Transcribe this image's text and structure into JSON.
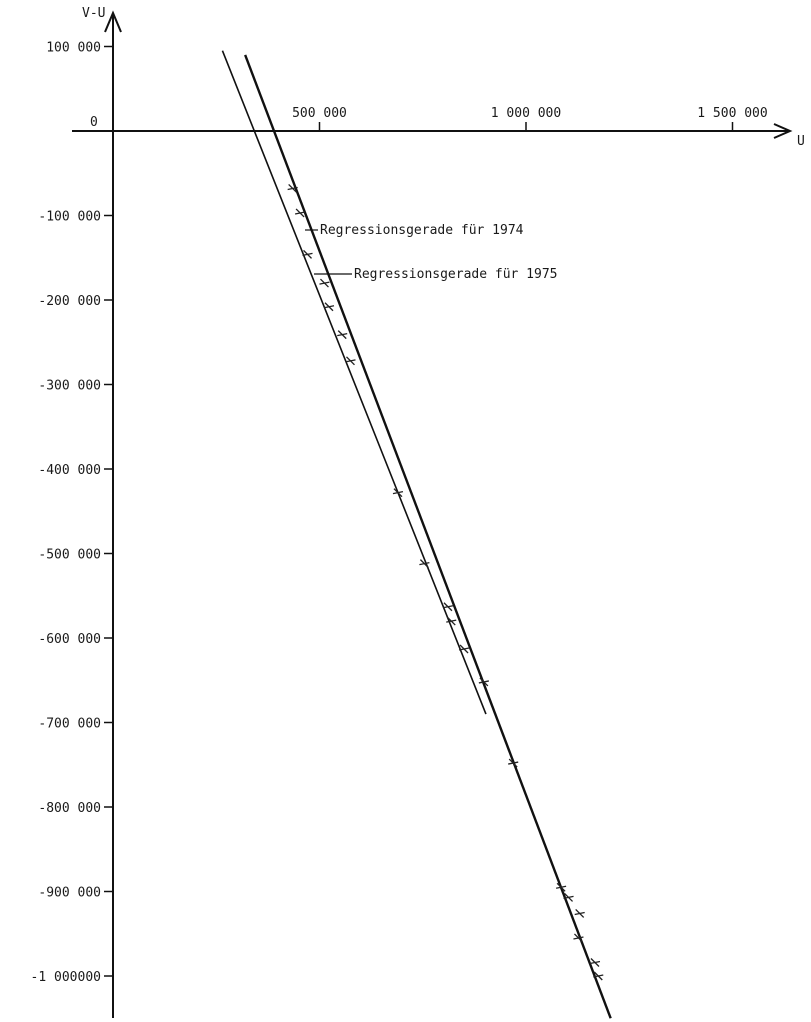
{
  "chart_data": {
    "type": "scatter",
    "title": "",
    "xlabel": "U",
    "ylabel": "V-U",
    "origin_label": "0",
    "xlim": [
      -105000,
      1660000
    ],
    "ylim": [
      -1040000,
      140000
    ],
    "x_ticks": [
      {
        "value": 500000,
        "label": "500 000"
      },
      {
        "value": 1000000,
        "label": "1 000 000"
      },
      {
        "value": 1500000,
        "label": "1 500 000"
      }
    ],
    "y_ticks": [
      {
        "value": 100000,
        "label": "100 000"
      },
      {
        "value": -100000,
        "label": "-100 000"
      },
      {
        "value": -200000,
        "label": "-200 000"
      },
      {
        "value": -300000,
        "label": "-300 000"
      },
      {
        "value": -400000,
        "label": "-400 000"
      },
      {
        "value": -500000,
        "label": "-500 000"
      },
      {
        "value": -600000,
        "label": "-600 000"
      },
      {
        "value": -700000,
        "label": "-700 000"
      },
      {
        "value": -800000,
        "label": "-800 000"
      },
      {
        "value": -900000,
        "label": "-900 000"
      },
      {
        "value": -1000000,
        "label": "-1 000000"
      }
    ],
    "grid": false,
    "regression_lines": [
      {
        "label": "Regressionsgerade für 1974",
        "x": [
          320000,
          1205000
        ],
        "y": [
          90000,
          -1050000
        ]
      },
      {
        "label": "Regressionsgerade für 1975",
        "x": [
          265000,
          903000
        ],
        "y": [
          95000,
          -690000
        ]
      }
    ],
    "points": [
      {
        "x": 435000,
        "y": -68000
      },
      {
        "x": 453000,
        "y": -97000
      },
      {
        "x": 471000,
        "y": -146000
      },
      {
        "x": 512000,
        "y": -180000
      },
      {
        "x": 523000,
        "y": -208000
      },
      {
        "x": 555000,
        "y": -241000
      },
      {
        "x": 575000,
        "y": -272000
      },
      {
        "x": 690000,
        "y": -428000
      },
      {
        "x": 754000,
        "y": -512000
      },
      {
        "x": 811000,
        "y": -563000
      },
      {
        "x": 819000,
        "y": -580000
      },
      {
        "x": 850000,
        "y": -613000
      },
      {
        "x": 898000,
        "y": -652000
      },
      {
        "x": 969000,
        "y": -748000
      },
      {
        "x": 1085000,
        "y": -895000
      },
      {
        "x": 1103000,
        "y": -907000
      },
      {
        "x": 1130000,
        "y": -926000
      },
      {
        "x": 1127000,
        "y": -955000
      },
      {
        "x": 1167000,
        "y": -984000
      },
      {
        "x": 1175000,
        "y": -1000000
      }
    ]
  }
}
